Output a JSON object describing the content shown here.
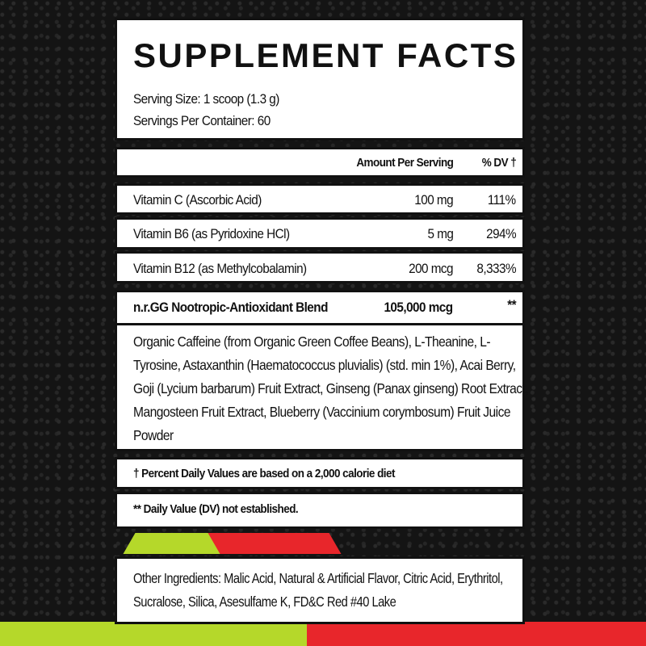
{
  "title": "SUPPLEMENT FACTS",
  "serving_size": "Serving Size: 1 scoop (1.3 g)",
  "servings_per_container": "Servings Per Container: 60",
  "columns": {
    "amount": "Amount Per Serving",
    "dv": "% DV †"
  },
  "rows": [
    {
      "name": "Vitamin C (Ascorbic Acid)",
      "amount": "100 mg",
      "dv": "111%"
    },
    {
      "name": "Vitamin B6 (as Pyridoxine HCl)",
      "amount": "5 mg",
      "dv": "294%"
    },
    {
      "name": "Vitamin B12 (as Methylcobalamin)",
      "amount": "200 mcg",
      "dv": "8,333%"
    },
    {
      "name": "n.r.GG Nootropic-Antioxidant Blend",
      "amount": "105,000 mcg",
      "dv": "**"
    }
  ],
  "blend_ingredients": "Organic Caffeine (from Organic Green Coffee Beans), L-Theanine, L-Tyrosine, Astaxanthin (Haematococcus pluvialis) (std. min 1%), Acai Berry, Goji (Lycium barbarum) Fruit Extract, Ginseng (Panax ginseng) Root Extract, Mangosteen Fruit Extract, Blueberry (Vaccinium corymbosum) Fruit Juice Powder",
  "footnote_dv": "† Percent Daily Values are based on a 2,000 calorie diet",
  "footnote_na": "** Daily Value (DV) not established.",
  "other_ingredients": "Other Ingredients: Malic Acid, Natural & Artificial Flavor, Citric Acid, Erythritol, Sucralose, Silica, Asesulfame K, FD&C Red #40 Lake",
  "colors": {
    "background": "#141414",
    "panel": "#ffffff",
    "accent_green": "#b5d82a",
    "accent_red": "#e8262b"
  }
}
